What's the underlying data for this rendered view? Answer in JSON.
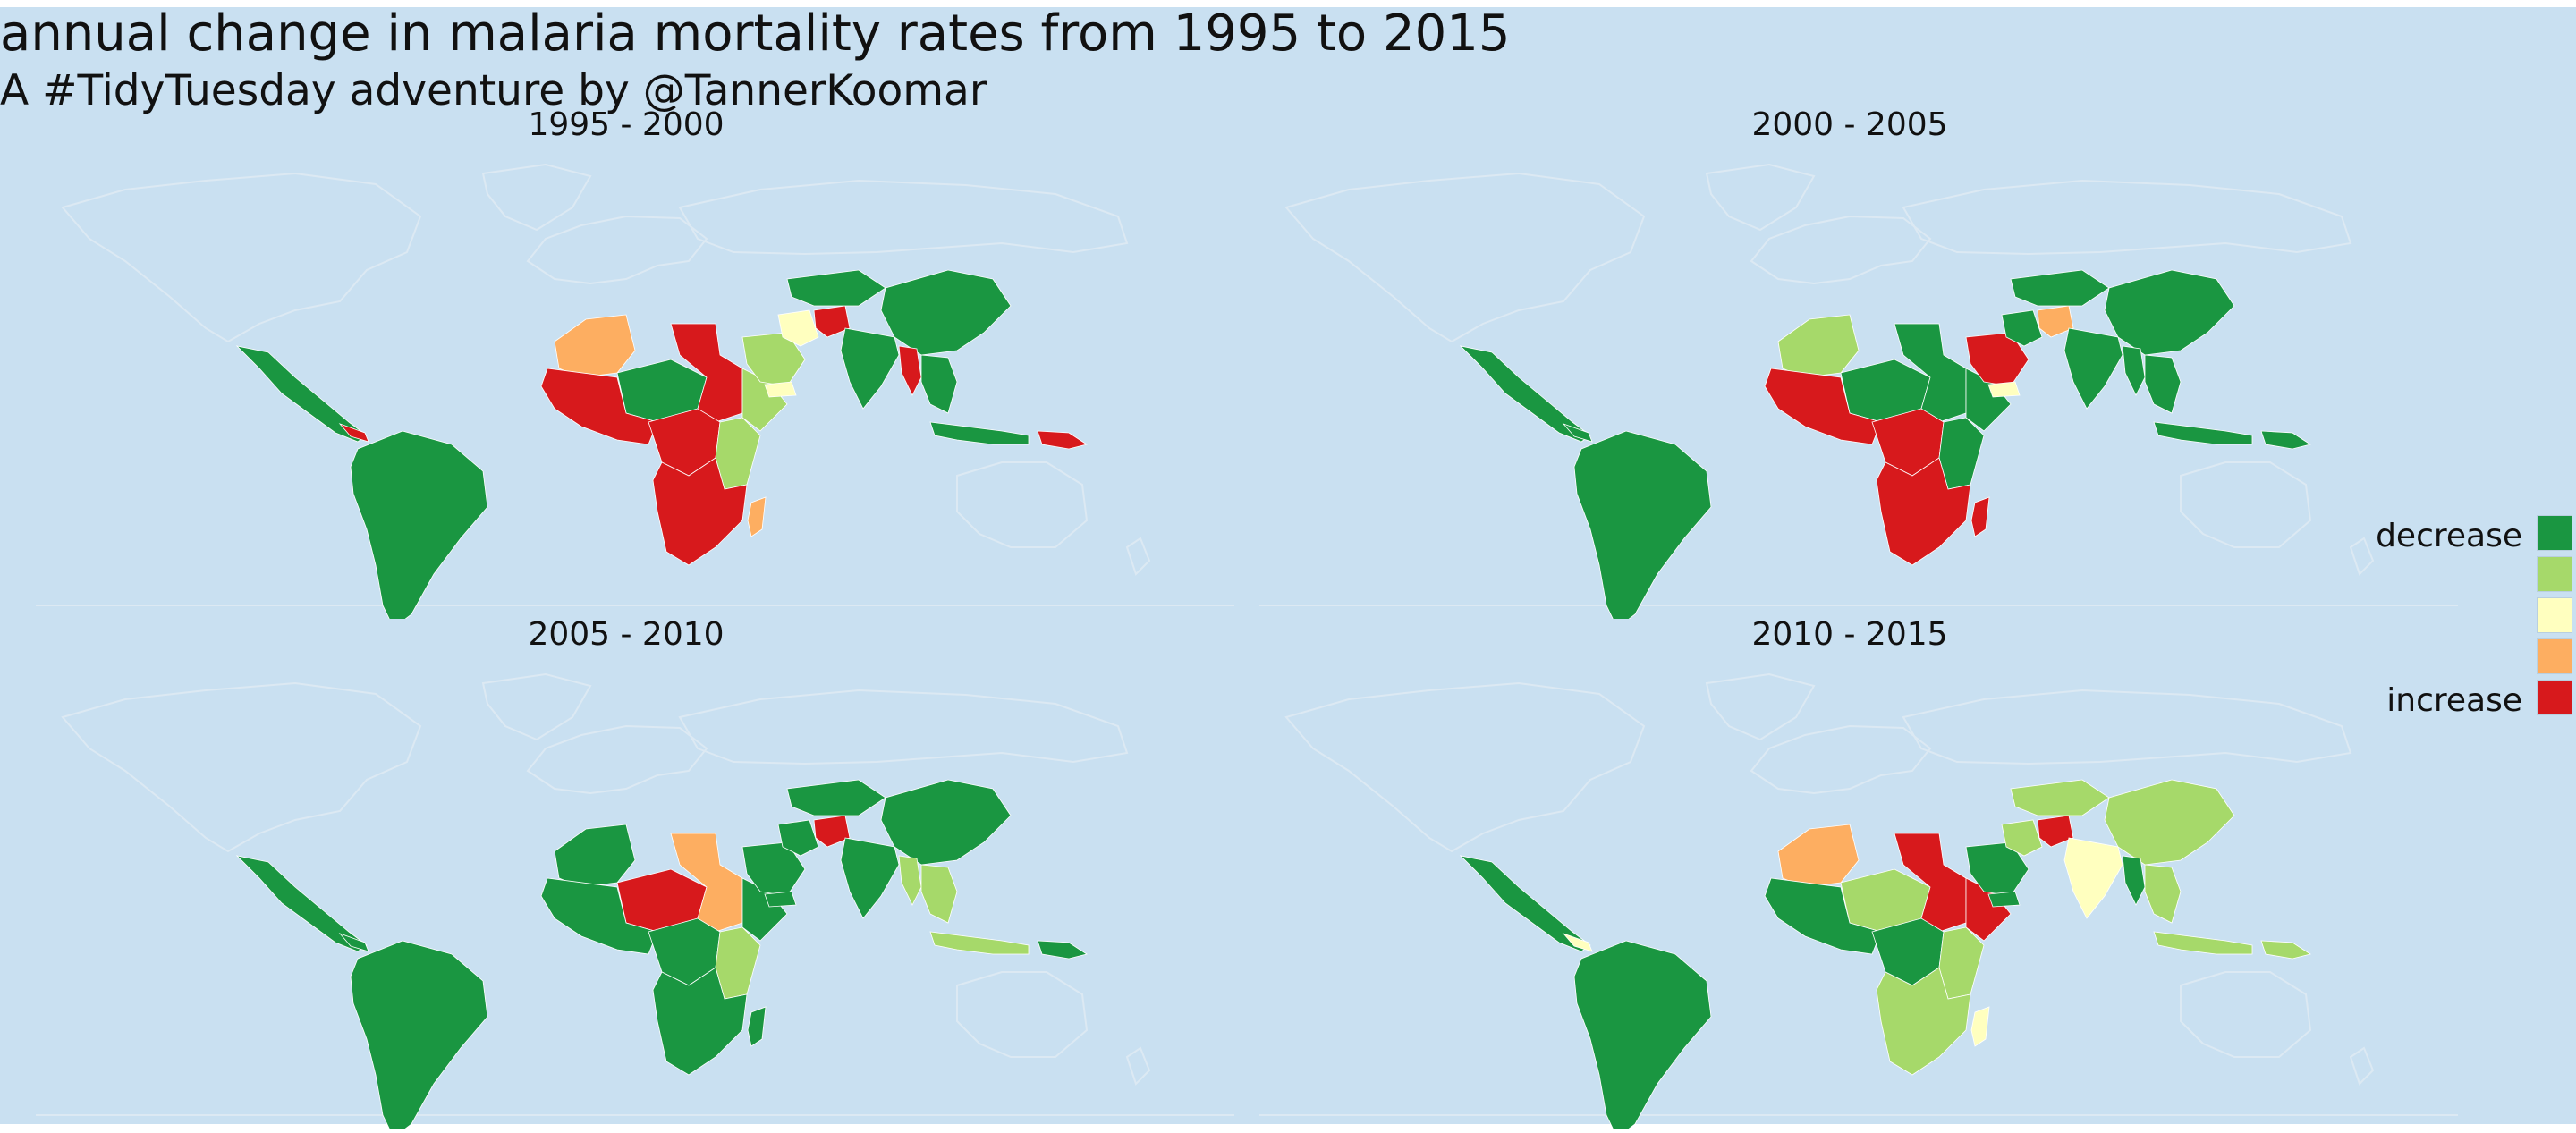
{
  "title": "annual change in malaria mortality rates from 1995 to 2015",
  "subtitle": "A #TidyTuesday adventure by @TannerKoomar",
  "colors": {
    "background": "#c9e0f1",
    "land_outline": "#dce9f3",
    "decrease": "#1a9641",
    "slight_decrease": "#a6d96a",
    "no_change": "#ffffbf",
    "slight_increase": "#fdae61",
    "increase": "#d7191c"
  },
  "panels": [
    {
      "title": "1995 - 2000",
      "regions": {
        "central_america": "decrease",
        "south_america": "decrease",
        "panama": "increase",
        "north_africa_w": "slight_increase",
        "west_africa": "increase",
        "sahel": "decrease",
        "egypt_sudan": "increase",
        "horn_of_africa": "slight_decrease",
        "central_africa": "increase",
        "east_africa": "slight_decrease",
        "southern_africa": "increase",
        "madagascar": "slight_increase",
        "arabia": "slight_decrease",
        "yemen": "no_change",
        "iran": "no_change",
        "afghanistan": "increase",
        "india": "decrease",
        "myanmar": "increase",
        "central_asia": "decrease",
        "china": "decrease",
        "southeast_asia": "decrease",
        "indonesia": "decrease",
        "papua": "increase"
      }
    },
    {
      "title": "2000 - 2005",
      "regions": {
        "central_america": "decrease",
        "south_america": "decrease",
        "panama": "decrease",
        "north_africa_w": "slight_decrease",
        "west_africa": "increase",
        "sahel": "decrease",
        "egypt_sudan": "decrease",
        "horn_of_africa": "decrease",
        "central_africa": "increase",
        "east_africa": "decrease",
        "southern_africa": "increase",
        "madagascar": "increase",
        "arabia": "increase",
        "yemen": "no_change",
        "iran": "decrease",
        "afghanistan": "slight_increase",
        "india": "decrease",
        "myanmar": "decrease",
        "central_asia": "decrease",
        "china": "decrease",
        "southeast_asia": "decrease",
        "indonesia": "decrease",
        "papua": "decrease"
      }
    },
    {
      "title": "2005 - 2010",
      "regions": {
        "central_america": "decrease",
        "south_america": "decrease",
        "panama": "decrease",
        "north_africa_w": "decrease",
        "west_africa": "decrease",
        "sahel": "increase",
        "egypt_sudan": "slight_increase",
        "horn_of_africa": "decrease",
        "central_africa": "decrease",
        "east_africa": "slight_decrease",
        "southern_africa": "decrease",
        "madagascar": "decrease",
        "arabia": "decrease",
        "yemen": "decrease",
        "iran": "decrease",
        "afghanistan": "increase",
        "india": "decrease",
        "myanmar": "slight_decrease",
        "central_asia": "decrease",
        "china": "decrease",
        "southeast_asia": "slight_decrease",
        "indonesia": "slight_decrease",
        "papua": "decrease"
      }
    },
    {
      "title": "2010 - 2015",
      "regions": {
        "central_america": "decrease",
        "south_america": "decrease",
        "panama": "no_change",
        "north_africa_w": "slight_increase",
        "west_africa": "decrease",
        "sahel": "slight_decrease",
        "egypt_sudan": "increase",
        "horn_of_africa": "increase",
        "central_africa": "decrease",
        "east_africa": "slight_decrease",
        "southern_africa": "slight_decrease",
        "madagascar": "no_change",
        "arabia": "decrease",
        "yemen": "decrease",
        "iran": "slight_decrease",
        "afghanistan": "increase",
        "india": "no_change",
        "myanmar": "decrease",
        "central_asia": "slight_decrease",
        "china": "slight_decrease",
        "southeast_asia": "slight_decrease",
        "indonesia": "slight_decrease",
        "papua": "slight_decrease"
      }
    }
  ],
  "legend": {
    "label_top": "decrease",
    "label_bottom": "increase",
    "order": [
      "decrease",
      "slight_decrease",
      "no_change",
      "slight_increase",
      "increase"
    ]
  }
}
